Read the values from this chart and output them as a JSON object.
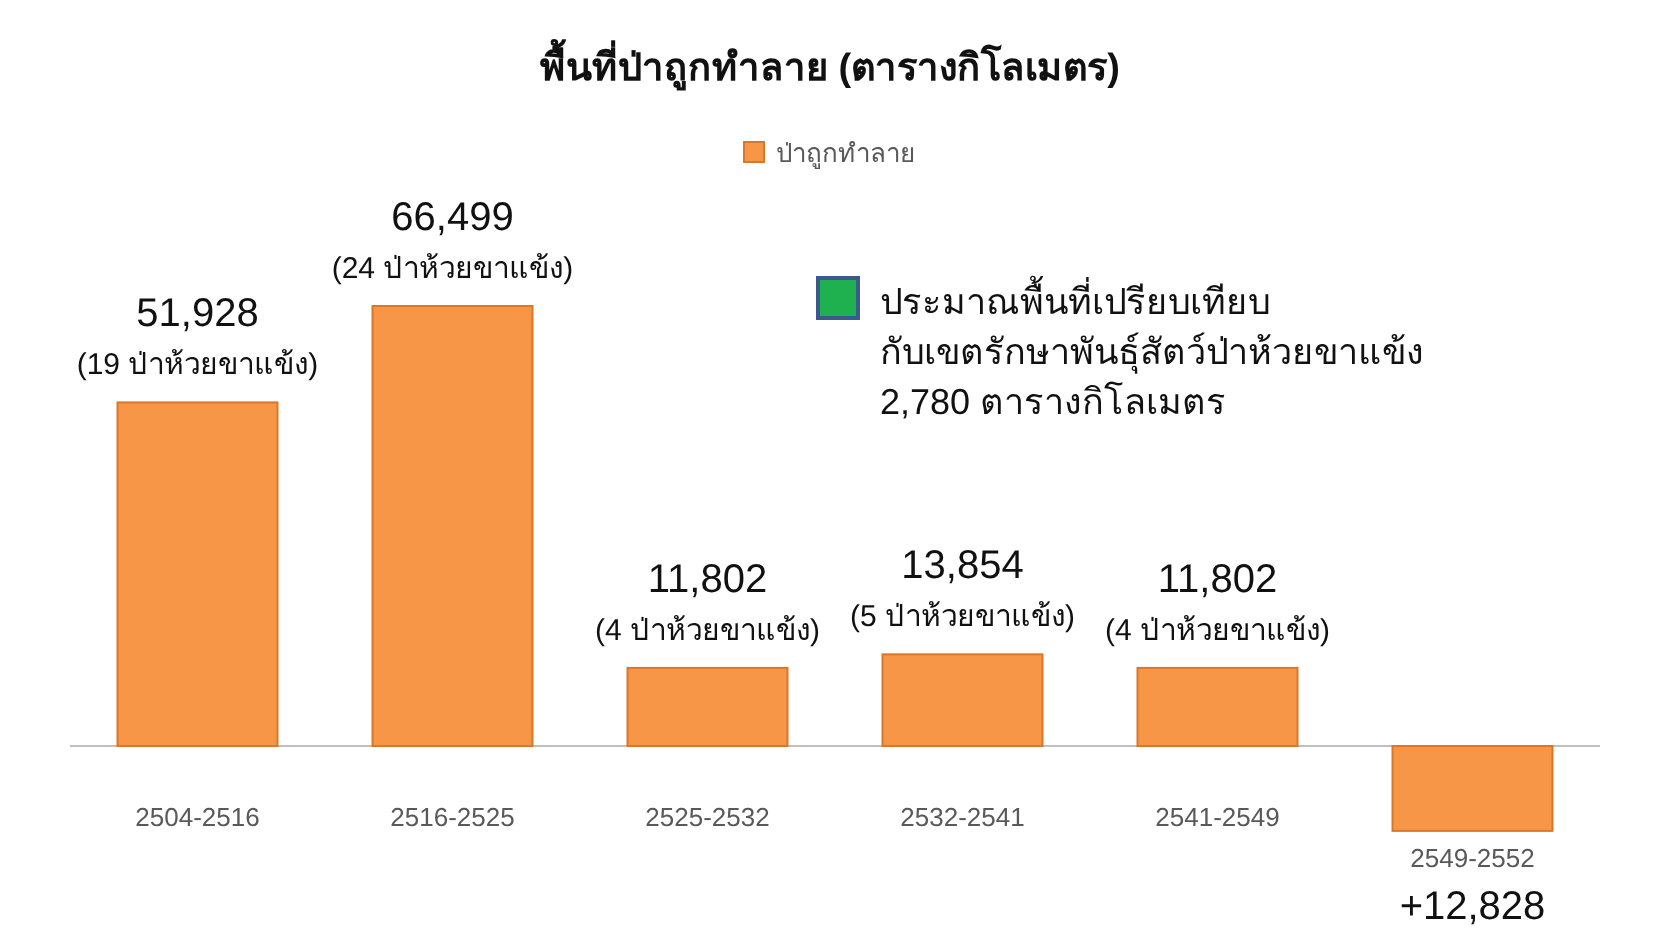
{
  "chart_data": {
    "type": "bar",
    "title": "พื้นที่ป่าถูกทำลาย (ตารางกิโลเมตร)",
    "categories": [
      "2504-2516",
      "2516-2525",
      "2525-2532",
      "2532-2541",
      "2541-2549",
      "2549-2552"
    ],
    "series": [
      {
        "name": "ป่าถูกทำลาย",
        "color": "#f79646",
        "values": [
          51928,
          66499,
          11802,
          13854,
          11802,
          -12828
        ],
        "value_labels": [
          "51,928",
          "66,499",
          "11,802",
          "13,854",
          "11,802",
          null
        ]
      }
    ],
    "legend": "top",
    "annotations": [
      {
        "text": "(19 ป่าห้วยขาแข้ง)",
        "x": "2504-2516",
        "y": 51928
      },
      {
        "text": "(24 ป่าห้วยขาแข้ง)",
        "x": "2516-2525",
        "y": 66499
      },
      {
        "text": "(4 ป่าห้วยขาแข้ง)",
        "x": "2525-2532",
        "y": 11802
      },
      {
        "text": "(5 ป่าห้วยขาแข้ง)",
        "x": "2532-2541",
        "y": 13854
      },
      {
        "text": "(4 ป่าห้วยขาแข้ง)",
        "x": "2541-2549",
        "y": 11802
      },
      {
        "text": "+12,828",
        "x": "2549-2552",
        "y": -12828
      },
      "ประมาณพื้นที่เปรียบเทียบ\nกับเขตรักษาพันธุ์สัตว์ป่าห้วยขาแข้ง\n2,780 ตารางกิโลเมตร"
    ]
  }
}
